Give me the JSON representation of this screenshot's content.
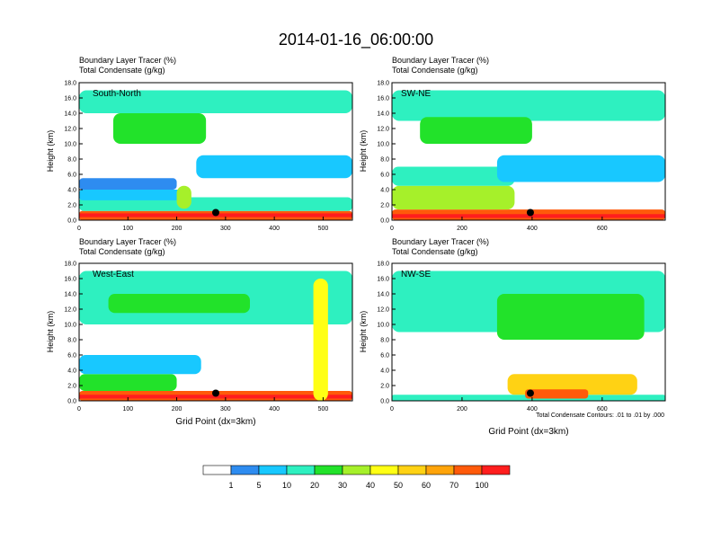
{
  "title": "2014-01-16_06:00:00",
  "panel_header": {
    "line1": "Boundary Layer Tracer   (%)",
    "line2": "Total Condensate   (g/kg)"
  },
  "ylabel": "Height (km)",
  "xlabel": "Grid Point (dx=3km)",
  "contour_note": "Total Condensate Contours: .01 to .01 by .000",
  "colorbar": {
    "colors": [
      "#ffffff",
      "#2e8cf0",
      "#18c8ff",
      "#2ef0c0",
      "#22e22a",
      "#a6f02a",
      "#ffff14",
      "#ffd214",
      "#ffa40a",
      "#ff5a0a",
      "#ff1e1e"
    ],
    "labels": [
      "1",
      "5",
      "10",
      "20",
      "30",
      "40",
      "50",
      "60",
      "70",
      "100"
    ]
  },
  "chart_data": [
    {
      "type": "heatmap",
      "name": "South-North",
      "x_ticks": [
        "0",
        "100",
        "200",
        "300",
        "400",
        "500"
      ],
      "xlim": [
        0,
        560
      ],
      "y_ticks": [
        "0.0",
        "2.0",
        "4.0",
        "6.0",
        "8.0",
        "10.0",
        "12.0",
        "14.0",
        "16.0",
        "18.0"
      ],
      "ylim": [
        0,
        18
      ],
      "marker": {
        "x": 280,
        "y": 1.0
      },
      "features": [
        {
          "xs": [
            0,
            560
          ],
          "ys": [
            0,
            1.2
          ],
          "level": 9
        },
        {
          "xs": [
            0,
            560
          ],
          "ys": [
            0.4,
            0.9
          ],
          "level": 10
        },
        {
          "xs": [
            0,
            560
          ],
          "ys": [
            1.2,
            3.0
          ],
          "level": 3
        },
        {
          "xs": [
            0,
            220
          ],
          "ys": [
            2.6,
            4.0
          ],
          "level": 2
        },
        {
          "xs": [
            0,
            200
          ],
          "ys": [
            4.0,
            5.5
          ],
          "level": 1
        },
        {
          "xs": [
            0,
            560
          ],
          "ys": [
            14.0,
            17.0
          ],
          "level": 3
        },
        {
          "xs": [
            70,
            260
          ],
          "ys": [
            10.0,
            14.0
          ],
          "level": 4
        },
        {
          "xs": [
            200,
            230
          ],
          "ys": [
            1.5,
            4.5
          ],
          "level": 5
        },
        {
          "xs": [
            240,
            560
          ],
          "ys": [
            5.5,
            8.5
          ],
          "level": 2
        }
      ]
    },
    {
      "type": "heatmap",
      "name": "SW-NE",
      "x_ticks": [
        "0",
        "200",
        "400",
        "600"
      ],
      "xlim": [
        0,
        780
      ],
      "y_ticks": [
        "0.0",
        "2.0",
        "4.0",
        "6.0",
        "8.0",
        "10.0",
        "12.0",
        "14.0",
        "16.0",
        "18.0"
      ],
      "ylim": [
        0,
        18
      ],
      "marker": {
        "x": 395,
        "y": 1.0
      },
      "features": [
        {
          "xs": [
            0,
            780
          ],
          "ys": [
            0,
            1.4
          ],
          "level": 9
        },
        {
          "xs": [
            0,
            780
          ],
          "ys": [
            0.3,
            0.8
          ],
          "level": 10
        },
        {
          "xs": [
            0,
            350
          ],
          "ys": [
            1.4,
            4.5
          ],
          "level": 5
        },
        {
          "xs": [
            0,
            350
          ],
          "ys": [
            4.5,
            7.0
          ],
          "level": 3
        },
        {
          "xs": [
            0,
            780
          ],
          "ys": [
            13.0,
            17.0
          ],
          "level": 3
        },
        {
          "xs": [
            80,
            400
          ],
          "ys": [
            10.0,
            13.5
          ],
          "level": 4
        },
        {
          "xs": [
            300,
            780
          ],
          "ys": [
            5.0,
            8.5
          ],
          "level": 2
        }
      ]
    },
    {
      "type": "heatmap",
      "name": "West-East",
      "x_ticks": [
        "0",
        "100",
        "200",
        "300",
        "400",
        "500"
      ],
      "xlim": [
        0,
        560
      ],
      "y_ticks": [
        "0.0",
        "2.0",
        "4.0",
        "6.0",
        "8.0",
        "10.0",
        "12.0",
        "14.0",
        "16.0",
        "18.0"
      ],
      "ylim": [
        0,
        18
      ],
      "marker": {
        "x": 280,
        "y": 1.0
      },
      "features": [
        {
          "xs": [
            0,
            560
          ],
          "ys": [
            0,
            1.3
          ],
          "level": 9
        },
        {
          "xs": [
            0,
            560
          ],
          "ys": [
            0.3,
            0.8
          ],
          "level": 10
        },
        {
          "xs": [
            0,
            200
          ],
          "ys": [
            1.3,
            3.5
          ],
          "level": 4
        },
        {
          "xs": [
            0,
            250
          ],
          "ys": [
            3.5,
            6.0
          ],
          "level": 2
        },
        {
          "xs": [
            0,
            560
          ],
          "ys": [
            10.0,
            17.0
          ],
          "level": 3
        },
        {
          "xs": [
            60,
            350
          ],
          "ys": [
            11.5,
            14.0
          ],
          "level": 4
        },
        {
          "xs": [
            480,
            510
          ],
          "ys": [
            0,
            16.0
          ],
          "level": 6
        }
      ]
    },
    {
      "type": "heatmap",
      "name": "NW-SE",
      "x_ticks": [
        "0",
        "200",
        "400",
        "600"
      ],
      "xlim": [
        0,
        780
      ],
      "y_ticks": [
        "0.0",
        "2.0",
        "4.0",
        "6.0",
        "8.0",
        "10.0",
        "12.0",
        "14.0",
        "16.0",
        "18.0"
      ],
      "ylim": [
        0,
        18
      ],
      "marker": {
        "x": 395,
        "y": 1.0
      },
      "features": [
        {
          "xs": [
            0,
            780
          ],
          "ys": [
            0,
            0.8
          ],
          "level": 3
        },
        {
          "xs": [
            330,
            700
          ],
          "ys": [
            0.8,
            3.5
          ],
          "level": 7
        },
        {
          "xs": [
            380,
            560
          ],
          "ys": [
            0.3,
            1.5
          ],
          "level": 9
        },
        {
          "xs": [
            0,
            780
          ],
          "ys": [
            9.0,
            17.0
          ],
          "level": 3
        },
        {
          "xs": [
            300,
            720
          ],
          "ys": [
            8.0,
            14.0
          ],
          "level": 4
        }
      ]
    }
  ]
}
